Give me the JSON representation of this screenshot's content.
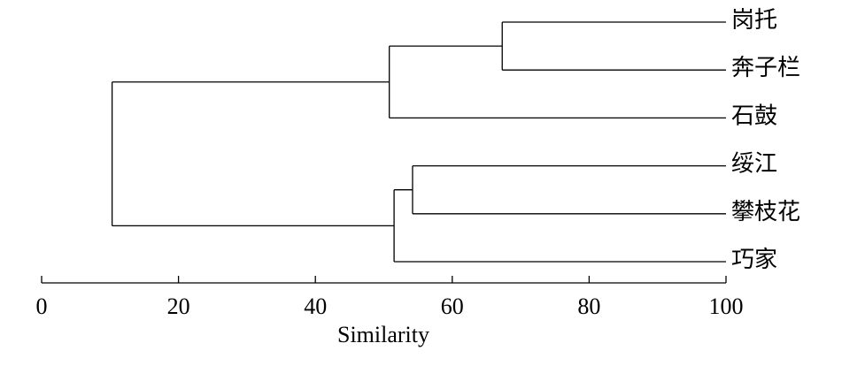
{
  "chart_data": {
    "type": "dendrogram",
    "x_label": "Similarity",
    "xlim": [
      0,
      100
    ],
    "xticks": [
      0,
      20,
      40,
      60,
      80,
      100
    ],
    "color": "#000000",
    "tree": {
      "value": 10.3,
      "children": [
        {
          "value": 50.8,
          "children": [
            {
              "value": 67.3,
              "children": [
                {
                  "label": "岗托"
                },
                {
                  "label": "奔子栏"
                }
              ]
            },
            {
              "label": "石鼓"
            }
          ]
        },
        {
          "value": 51.5,
          "children": [
            {
              "value": 54.2,
              "children": [
                {
                  "label": "绥江"
                },
                {
                  "label": "攀枝花"
                }
              ]
            },
            {
              "label": "巧家"
            }
          ]
        }
      ]
    }
  }
}
